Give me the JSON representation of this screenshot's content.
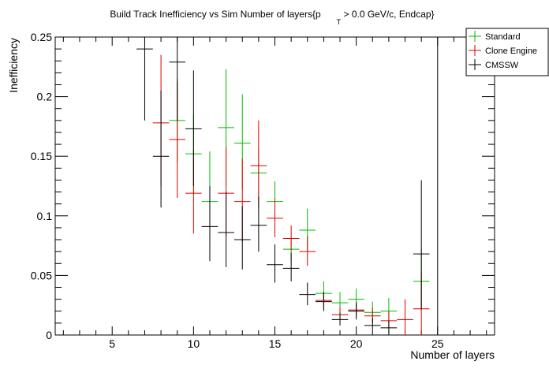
{
  "chart_data": {
    "type": "scatter",
    "title": "Build Track Inefficiency vs Sim Number of layers{p",
    "title_sub": "T",
    "title_tail": " > 0.0 GeV/c, Endcap}",
    "xlabel": "Number of layers",
    "ylabel": "Inefficiency",
    "xlim": [
      1.5,
      28.5
    ],
    "ylim": [
      0,
      0.25
    ],
    "x_ticks": [
      5,
      10,
      15,
      20,
      25
    ],
    "y_ticks": [
      0,
      0.05,
      0.1,
      0.15,
      0.2,
      0.25
    ],
    "x_tick_labels": [
      "5",
      "10",
      "15",
      "20",
      "25"
    ],
    "y_tick_labels": [
      "0",
      "0.05",
      "0.1",
      "0.15",
      "0.2",
      "0.25"
    ],
    "legend_position": "top-right",
    "series": [
      {
        "name": "Standard",
        "color": "#00bb00",
        "points": [
          {
            "x": 9,
            "y": 0.18,
            "lo": 0.145,
            "hi": 0.215
          },
          {
            "x": 10,
            "y": 0.152,
            "lo": 0.118,
            "hi": 0.185
          },
          {
            "x": 11,
            "y": 0.112,
            "lo": 0.075,
            "hi": 0.154
          },
          {
            "x": 12,
            "y": 0.174,
            "lo": 0.125,
            "hi": 0.223
          },
          {
            "x": 13,
            "y": 0.161,
            "lo": 0.122,
            "hi": 0.202
          },
          {
            "x": 14,
            "y": 0.136,
            "lo": 0.115,
            "hi": 0.157
          },
          {
            "x": 15,
            "y": 0.112,
            "lo": 0.095,
            "hi": 0.129
          },
          {
            "x": 16,
            "y": 0.072,
            "lo": 0.062,
            "hi": 0.082
          },
          {
            "x": 17,
            "y": 0.088,
            "lo": 0.071,
            "hi": 0.106
          },
          {
            "x": 18,
            "y": 0.035,
            "lo": 0.026,
            "hi": 0.045
          },
          {
            "x": 19,
            "y": 0.027,
            "lo": 0.019,
            "hi": 0.036
          },
          {
            "x": 20,
            "y": 0.03,
            "lo": 0.022,
            "hi": 0.039
          },
          {
            "x": 21,
            "y": 0.019,
            "lo": 0.011,
            "hi": 0.028
          },
          {
            "x": 22,
            "y": 0.02,
            "lo": 0.01,
            "hi": 0.031
          },
          {
            "x": 24,
            "y": 0.045,
            "lo": 0.02,
            "hi": 0.072
          }
        ]
      },
      {
        "name": "Clone Engine",
        "color": "#dd0000",
        "points": [
          {
            "x": 8,
            "y": 0.178,
            "lo": 0.125,
            "hi": 0.235
          },
          {
            "x": 9,
            "y": 0.164,
            "lo": 0.115,
            "hi": 0.212
          },
          {
            "x": 10,
            "y": 0.119,
            "lo": 0.085,
            "hi": 0.155
          },
          {
            "x": 12,
            "y": 0.119,
            "lo": 0.082,
            "hi": 0.158
          },
          {
            "x": 13,
            "y": 0.112,
            "lo": 0.078,
            "hi": 0.148
          },
          {
            "x": 14,
            "y": 0.142,
            "lo": 0.106,
            "hi": 0.18
          },
          {
            "x": 15,
            "y": 0.098,
            "lo": 0.082,
            "hi": 0.115
          },
          {
            "x": 16,
            "y": 0.081,
            "lo": 0.071,
            "hi": 0.092
          },
          {
            "x": 17,
            "y": 0.07,
            "lo": 0.058,
            "hi": 0.083
          },
          {
            "x": 18,
            "y": 0.029,
            "lo": 0.022,
            "hi": 0.036
          },
          {
            "x": 19,
            "y": 0.017,
            "lo": 0.011,
            "hi": 0.024
          },
          {
            "x": 20,
            "y": 0.021,
            "lo": 0.015,
            "hi": 0.028
          },
          {
            "x": 21,
            "y": 0.016,
            "lo": 0.01,
            "hi": 0.023
          },
          {
            "x": 22,
            "y": 0.012,
            "lo": 0.006,
            "hi": 0.02
          },
          {
            "x": 23,
            "y": 0.013,
            "lo": 0.0,
            "hi": 0.03
          },
          {
            "x": 24,
            "y": 0.022,
            "lo": 0.0,
            "hi": 0.052
          }
        ]
      },
      {
        "name": "CMSSW",
        "color": "#000000",
        "points": [
          {
            "x": 7,
            "y": 0.24,
            "lo": 0.18,
            "hi": 0.25
          },
          {
            "x": 8,
            "y": 0.15,
            "lo": 0.107,
            "hi": 0.205
          },
          {
            "x": 9,
            "y": 0.229,
            "lo": 0.18,
            "hi": 0.25
          },
          {
            "x": 10,
            "y": 0.173,
            "lo": 0.125,
            "hi": 0.222
          },
          {
            "x": 11,
            "y": 0.091,
            "lo": 0.062,
            "hi": 0.125
          },
          {
            "x": 12,
            "y": 0.086,
            "lo": 0.057,
            "hi": 0.12
          },
          {
            "x": 13,
            "y": 0.08,
            "lo": 0.055,
            "hi": 0.108
          },
          {
            "x": 14,
            "y": 0.092,
            "lo": 0.07,
            "hi": 0.116
          },
          {
            "x": 15,
            "y": 0.059,
            "lo": 0.044,
            "hi": 0.076
          },
          {
            "x": 16,
            "y": 0.056,
            "lo": 0.045,
            "hi": 0.069
          },
          {
            "x": 17,
            "y": 0.034,
            "lo": 0.025,
            "hi": 0.044
          },
          {
            "x": 18,
            "y": 0.028,
            "lo": 0.02,
            "hi": 0.036
          },
          {
            "x": 19,
            "y": 0.013,
            "lo": 0.008,
            "hi": 0.019
          },
          {
            "x": 20,
            "y": 0.02,
            "lo": 0.013,
            "hi": 0.027
          },
          {
            "x": 21,
            "y": 0.008,
            "lo": 0.004,
            "hi": 0.014
          },
          {
            "x": 22,
            "y": 0.006,
            "lo": 0.002,
            "hi": 0.012
          },
          {
            "x": 24,
            "y": 0.068,
            "lo": 0.022,
            "hi": 0.13
          },
          {
            "x": 25,
            "y": 0.0,
            "lo": 0.0,
            "hi": 0.25
          }
        ]
      }
    ]
  }
}
